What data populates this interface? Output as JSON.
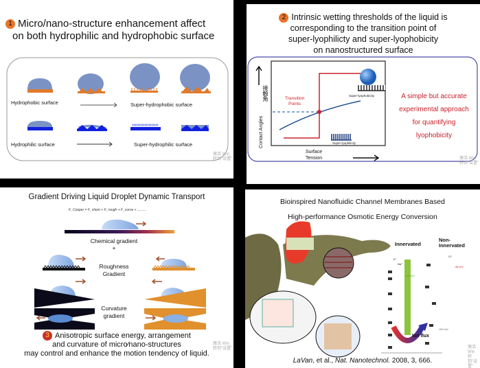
{
  "slide1": {
    "badge": "1",
    "title_line1": "Micro/nano-structure enhancement affect",
    "title_line2": "on both hydrophilic and hydrophobic surface",
    "hydrophobic_label": "Hydrophobic surface",
    "super_hydrophobic_label": "Super-hydrophobic surface",
    "hydrophilic_label": "Hydrophilic surface",
    "super_hydrophilic_label": "Super-hydrophilic surface",
    "colors": {
      "droplet": "#7b93c4",
      "hydrophobic": "#e07a2c",
      "hydrophilic": "#1020e0"
    }
  },
  "slide2": {
    "badge": "2",
    "title": [
      "Intrinsic wetting thresholds of the liquid is",
      "corresponding to the transition point of",
      "super-lyophilicty and super-lyophobicity",
      "on nanostructured surface"
    ],
    "y_axis_label": "Contact Angles",
    "y_axis_label_cn": "接触角",
    "x_axis_label_line1": "Surface",
    "x_axis_label_line2": "Tension",
    "transition_label_line1": "Transition",
    "transition_label_line2": "Points",
    "super_lyophobicity": "Super-lyophobicity",
    "super_lyophilicity": "Super-lyophilicity",
    "callout": [
      "A simple but accurate",
      "experimental approach",
      "for quantifying",
      "lyophobicity"
    ],
    "colors": {
      "frame": "#4a4aa8",
      "red": "#c8202a",
      "curve": "#1f4f8f"
    }
  },
  "slide3": {
    "title": "Gradient Driving Liquid Droplet Dynamic Transport",
    "equation": "F_Cooper = F_chem + F_rough + F_curva + ..........",
    "chemical_gradient": "Chemical gradient",
    "plus1": "+",
    "plus2": "+",
    "roughness_gradient_line1": "Roughness",
    "roughness_gradient_line2": "Gradient",
    "curvature_gradient_line1": "Curvature",
    "curvature_gradient_line2": "gradient",
    "badge": "3",
    "conclusion": [
      "Anisotropic surface energy, arrangement",
      "and curvature of micro∕nano-structures",
      "may control and enhance the motion tendency of liquid."
    ],
    "colors": {
      "orange": "#e0902c",
      "dark": "#0a0a1a",
      "droplet": "#a9c4ec",
      "arrow": "#a0522d"
    }
  },
  "slide4": {
    "title_line1": "Bioinspired Nanofluidic Channel Membranes Based",
    "title_line2": "High-performance Osmotic Energy Conversion",
    "innervated": "Innervated",
    "non_innervated_line1": "Non-",
    "non_innervated_line2": "Innervated",
    "ion_flux": "Ion flux",
    "voltage_left": "+65 mV",
    "voltage_right": "-85 mV",
    "voltage_total": "150 mV",
    "ions": [
      "K⁺",
      "Na⁺",
      "Cl⁻"
    ],
    "citation_author": "LaVan",
    "citation_rest": ", et al., ",
    "citation_journal": "Nat. Nanotechnol.",
    "citation_year": " 2008, 3, 666.",
    "colors": {
      "eel": "#7d7a4e",
      "green_bar": "#8cc43c"
    }
  },
  "watermark": [
    "激活 Win",
    "转到\"设置\""
  ]
}
